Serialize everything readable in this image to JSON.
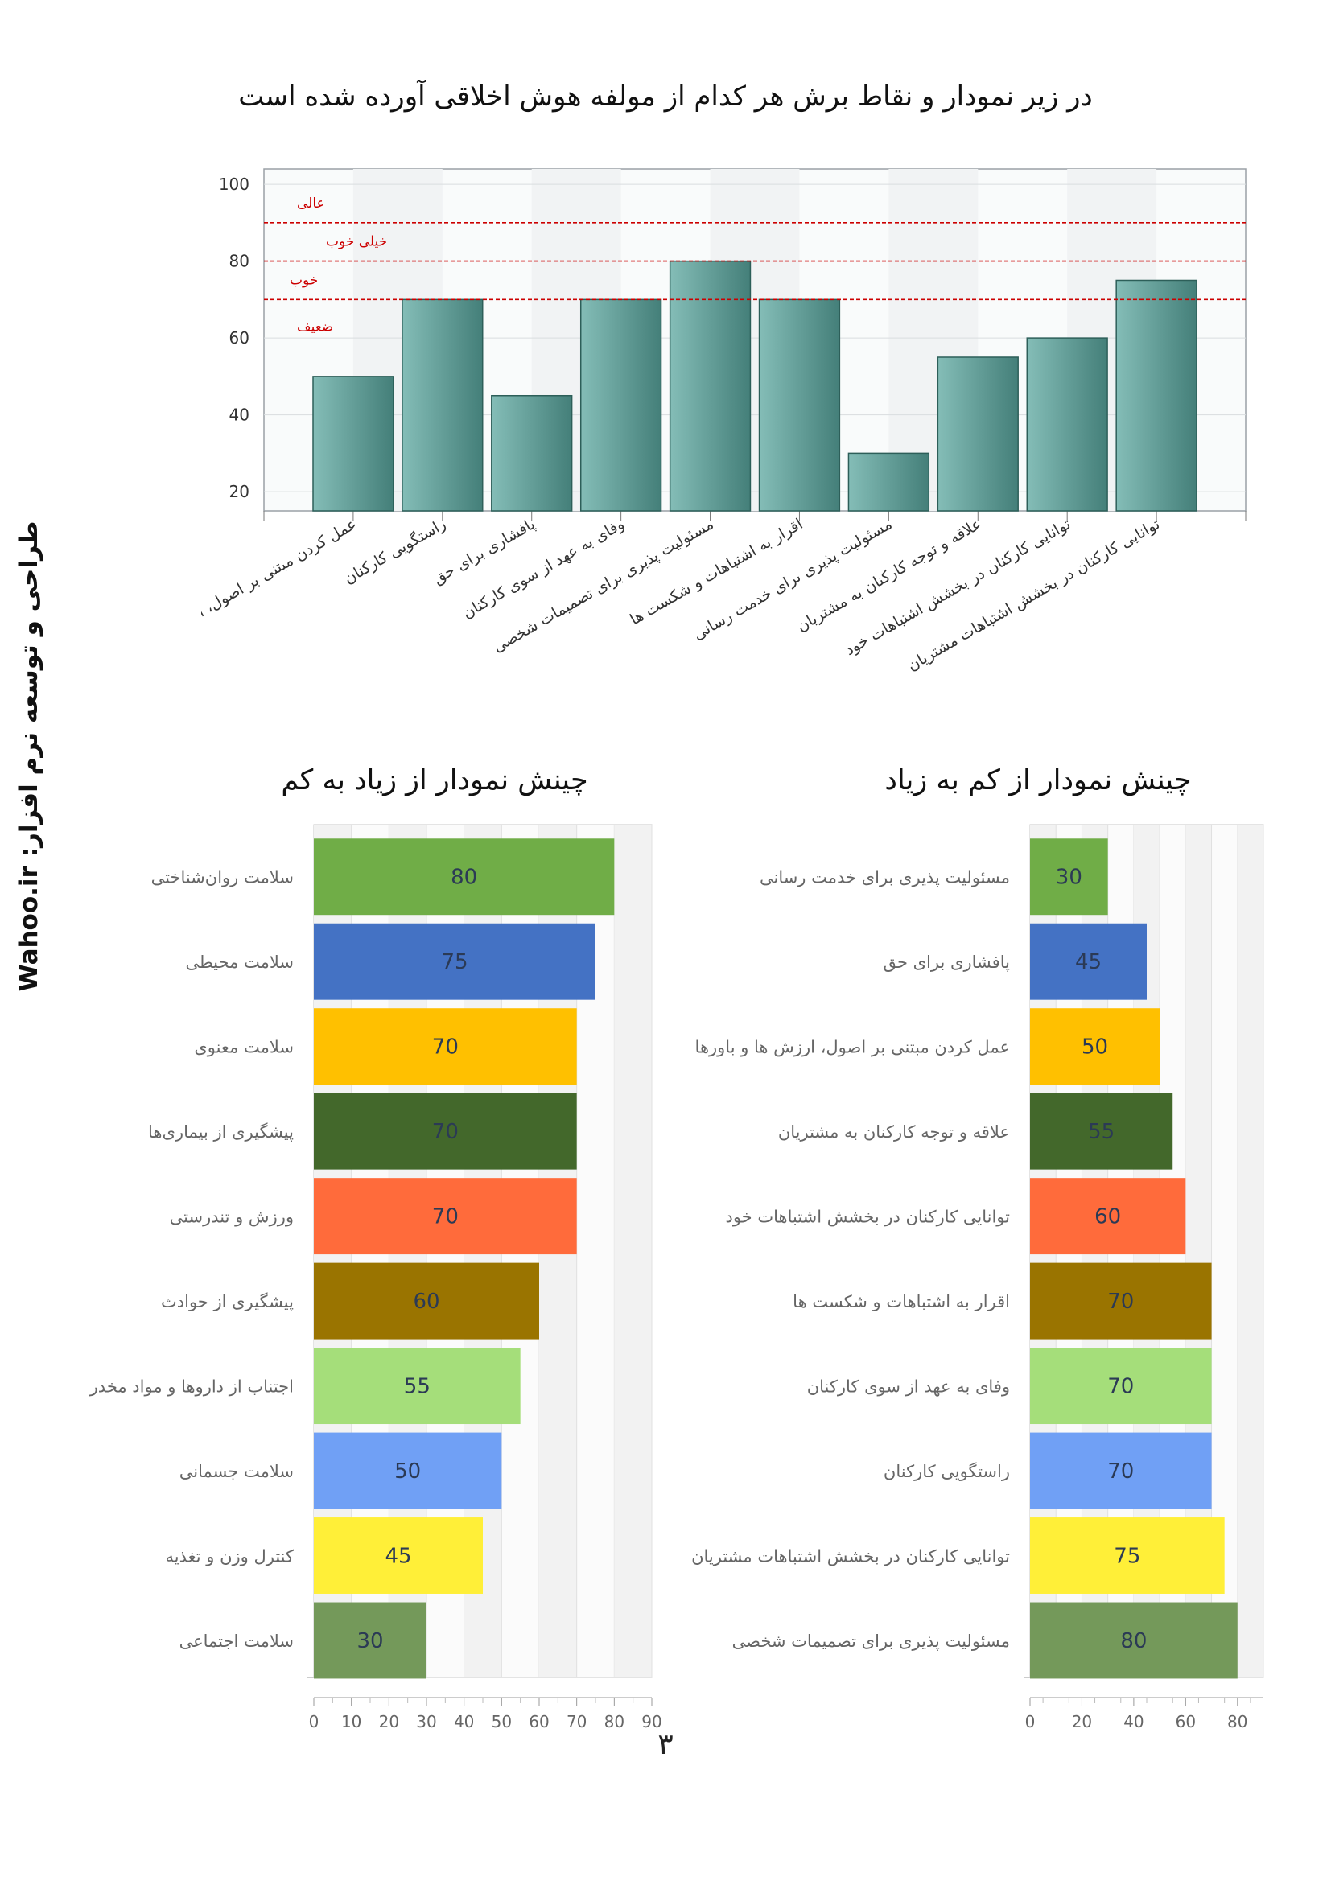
{
  "page": {
    "title": "در زیر نمودار و نقاط برش هر کدام از مولفه هوش اخلاقی آورده شده است",
    "side_credit": "طراحی و توسعه نرم افزار:   Wahoo.ir",
    "page_number": "۳"
  },
  "chart_data": [
    {
      "id": "top",
      "type": "bar",
      "categories": [
        "عمل کردن مبتنی بر اصول، ارزش ها و باورها",
        "راستگویی کارکنان",
        "پافشاری برای حق",
        "وفای به عهد از سوی کارکنان",
        "مسئولیت پذیری برای تصمیمات شخصی",
        "اقرار به اشتباهات و شکست ها",
        "مسئولیت پذیری برای خدمت رسانی",
        "علاقه و توجه کارکنان به مشتریان",
        "توانایی کارکنان در بخشش اشتباهات خود",
        "توانایی کارکنان در بخشش اشتباهات مشتریان"
      ],
      "values": [
        50,
        70,
        45,
        70,
        80,
        70,
        30,
        55,
        60,
        75
      ],
      "ylim": [
        15,
        104
      ],
      "yticks": [
        "20",
        "40",
        "60",
        "80",
        "100"
      ],
      "thresholds": [
        {
          "value": 90,
          "label": "عالی"
        },
        {
          "value": 80,
          "label": "خیلی خوب"
        },
        {
          "value": 70,
          "label": "خوب"
        },
        {
          "value": 62,
          "label": "ضعیف"
        }
      ],
      "bar_color": "#5f9e98",
      "threshold_color": "#cc0000"
    },
    {
      "id": "desc",
      "type": "bar",
      "orientation": "horizontal",
      "title": "چینش نمودار از زیاد به کم",
      "categories": [
        "سلامت روان‌شناختی",
        "سلامت محیطی",
        "سلامت معنوی",
        "پیشگیری از بیماری‌ها",
        "ورزش و تندرستی",
        "پیشگیری از حوادث",
        "اجتناب از داروها و مواد مخدر",
        "سلامت جسمانی",
        "کنترل وزن و تغذیه",
        "سلامت اجتماعی"
      ],
      "values": [
        80,
        75,
        70,
        70,
        70,
        60,
        55,
        50,
        45,
        30
      ],
      "xlim": [
        0,
        90
      ],
      "xticks": [
        "0",
        "10",
        "20",
        "30",
        "40",
        "50",
        "60",
        "70",
        "80",
        "90"
      ],
      "colors": [
        "#70ad47",
        "#4472c4",
        "#ffc000",
        "#43682b",
        "#ff6b3b",
        "#9a7400",
        "#a5de7a",
        "#70a0f5",
        "#ffef38",
        "#74995a"
      ]
    },
    {
      "id": "asc",
      "type": "bar",
      "orientation": "horizontal",
      "title": "چینش نمودار از کم به زیاد",
      "categories": [
        "مسئولیت پذیری برای خدمت رسانی",
        "پافشاری برای حق",
        "عمل کردن مبتنی بر اصول، ارزش ها و باورها",
        "علاقه و توجه کارکنان به مشتریان",
        "توانایی کارکنان در بخشش اشتباهات خود",
        "اقرار به اشتباهات و شکست ها",
        "وفای به عهد از سوی کارکنان",
        "راستگویی کارکنان",
        "توانایی کارکنان در بخشش اشتباهات مشتریان",
        "مسئولیت پذیری برای تصمیمات شخصی"
      ],
      "values": [
        30,
        45,
        50,
        55,
        60,
        70,
        70,
        70,
        75,
        80
      ],
      "xlim": [
        0,
        90
      ],
      "xticks": [
        "0",
        "20",
        "40",
        "60",
        "80"
      ],
      "colors": [
        "#70ad47",
        "#4472c4",
        "#ffc000",
        "#43682b",
        "#ff6b3b",
        "#9a7400",
        "#a5de7a",
        "#70a0f5",
        "#ffef38",
        "#74995a"
      ]
    }
  ]
}
